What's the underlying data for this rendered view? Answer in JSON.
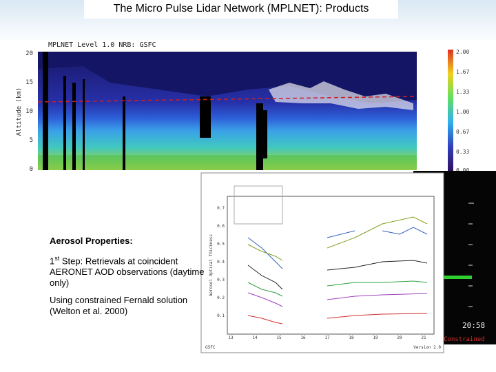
{
  "title": "The Micro Pulse Lidar Network (MPLNET): Products",
  "lidar_plot": {
    "heading": "MPLNET Level 1.0 NRB: GSFC",
    "y_axis_label": "Altitude (km)",
    "y_ticks": [
      "20",
      "15",
      "10",
      "5",
      "0"
    ],
    "colorbar_ticks": [
      "2.00",
      "1.67",
      "1.33",
      "1.00",
      "0.67",
      "0.33",
      "0.00"
    ]
  },
  "aod_plot": {
    "y_axis_label": "Aerosol Optical Thickness",
    "y_ticks": [
      "0.7",
      "0.6",
      "0.5",
      "0.4",
      "0.3",
      "0.2",
      "0.1"
    ],
    "x_ticks": [
      "13",
      "14",
      "15",
      "16",
      "17",
      "18",
      "19",
      "20",
      "21"
    ],
    "footer_left": "GSFC",
    "footer_right": "Version 2.0"
  },
  "side_labels": {
    "time": "20:58",
    "constrained": "Constrained"
  },
  "text": {
    "heading": "Aerosol Properties:",
    "step_number": "1",
    "step_suffix": "st",
    "step_text": "Step: Retrievals at coincident AERONET AOD observations (daytime only)",
    "method": "Using constrained Fernald solution (Welton et al. 2000)"
  }
}
